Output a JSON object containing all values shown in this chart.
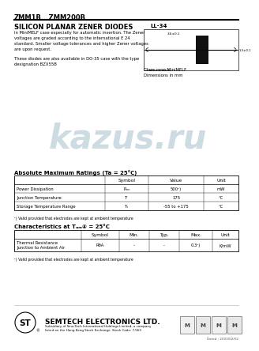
{
  "title": "ZMM1B...ZMM200B",
  "subtitle": "SILICON PLANAR ZENER DIODES",
  "body_text_line1": "in MiniMELF case especially for automatic insertion. The Zener",
  "body_text_line2": "voltages are graded according to the international E 24",
  "body_text_line3": "standard. Smaller voltage tolerances and higher Zener voltages",
  "body_text_line4": "are upon request.",
  "body_text2_line1": "These diodes are also available in DO-35 case with the type",
  "body_text2_line2": "designation BZX55B",
  "package_label": "LL-34",
  "pkg_dim_top": "3.6±0.1",
  "pkg_dim_right": "1.3±0.1",
  "pkg_cathode": "Cathode mark",
  "package_note1": "Glass case MiniMELF",
  "package_note2": "Dimensions in mm",
  "watermark": "kazus.ru",
  "section1_title": "Absolute Maximum Ratings (Ta = 25°C)",
  "table1_headers": [
    "",
    "Symbol",
    "Value",
    "Unit"
  ],
  "table1_row1": [
    "Power Dissipation",
    "Pₘₙ",
    "500¹)",
    "mW"
  ],
  "table1_row2": [
    "Junction Temperature",
    "Tⁱ",
    "175",
    "°C"
  ],
  "table1_row3": [
    "Storage Temperature Range",
    "Tₛ",
    "-55 to +175",
    "°C"
  ],
  "table1_note": "¹) Valid provided that electrodes are kept at ambient temperature",
  "section2_title": "Characteristics at Tₐₘ④ = 25°C",
  "table2_headers": [
    "",
    "Symbol",
    "Min.",
    "Typ.",
    "Max.",
    "Unit"
  ],
  "table2_row1a": "Thermal Resistance",
  "table2_row1b": "Junction to Ambient Air",
  "table2_row1_sym": "RθA",
  "table2_row1_min": "-",
  "table2_row1_typ": "-",
  "table2_row1_max": "0.3¹)",
  "table2_row1_unit": "K/mW",
  "table2_note": "¹) Valid provided that electrodes are kept at ambient temperature",
  "company": "SEMTECH ELECTRONICS LTD.",
  "company_sub1": "Subsidiary of Sino-Tech International Holdings Limited, a company",
  "company_sub2": "listed on the Hong Kong Stock Exchange, Stock Code: 7.563",
  "date_str": "Dated : 2003/02/02",
  "bg_color": "#ffffff",
  "line_color": "#000000",
  "watermark_color": "#b8ccd8"
}
